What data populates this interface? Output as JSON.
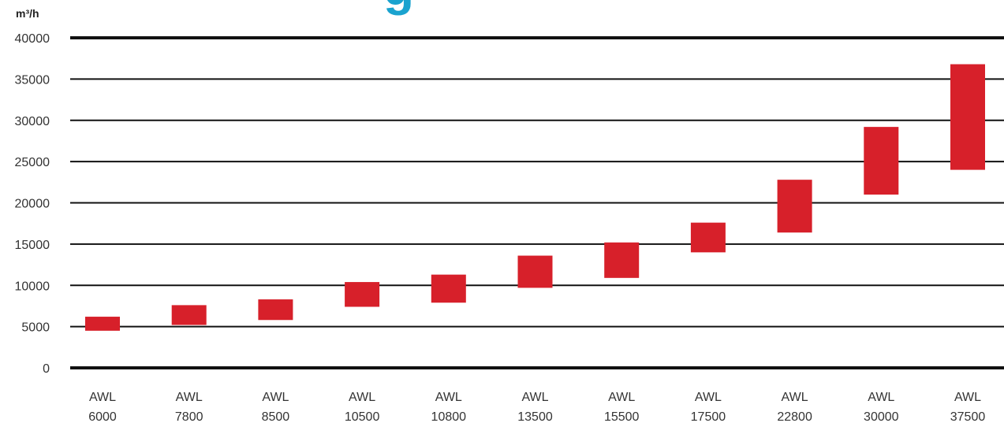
{
  "chart_data": {
    "type": "bar",
    "title_fragment": "g",
    "ylabel": "m³/h",
    "xlabel": "",
    "ylim": [
      0,
      40000
    ],
    "yticks": [
      0,
      5000,
      10000,
      15000,
      20000,
      25000,
      30000,
      35000,
      40000
    ],
    "categories": [
      [
        "AWL",
        "6000"
      ],
      [
        "AWL",
        "7800"
      ],
      [
        "AWL",
        "8500"
      ],
      [
        "AWL",
        "10500"
      ],
      [
        "AWL",
        "10800"
      ],
      [
        "AWL",
        "13500"
      ],
      [
        "AWL",
        "15500"
      ],
      [
        "AWL",
        "17500"
      ],
      [
        "AWL",
        "22800"
      ],
      [
        "AWL",
        "30000"
      ],
      [
        "AWL",
        "37500"
      ]
    ],
    "ranges": [
      [
        4500,
        6200
      ],
      [
        5200,
        7600
      ],
      [
        5800,
        8300
      ],
      [
        7400,
        10400
      ],
      [
        7900,
        11300
      ],
      [
        9700,
        13600
      ],
      [
        10900,
        15200
      ],
      [
        14000,
        17600
      ],
      [
        16400,
        22800
      ],
      [
        21000,
        29200
      ],
      [
        24000,
        36800
      ]
    ],
    "grid": true,
    "colors": {
      "bar": "#d7202a",
      "grid": "#111111",
      "title": "#1aa3cf",
      "text": "#333333"
    }
  }
}
